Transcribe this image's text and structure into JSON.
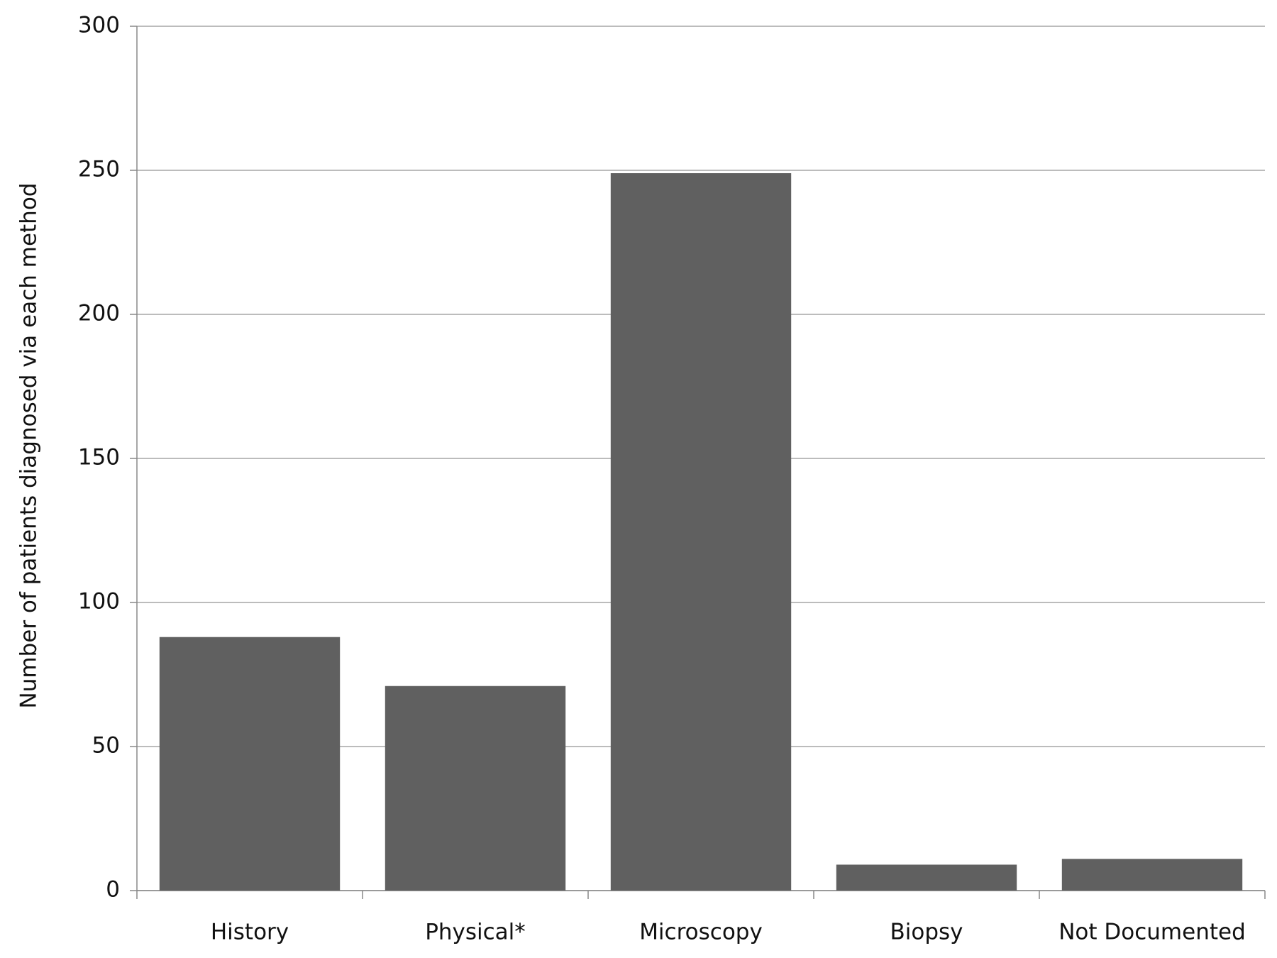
{
  "chart_data": {
    "type": "bar",
    "y_label": "Number of patients diagnosed via each method",
    "categories": [
      "History",
      "Physical*",
      "Microscopy",
      "Biopsy",
      "Not Documented"
    ],
    "values": [
      88,
      71,
      249,
      9,
      11
    ],
    "color": "#606060",
    "ylim": [
      0,
      300
    ],
    "yticks": [
      0,
      50,
      100,
      150,
      200,
      250,
      300
    ],
    "grid": true
  }
}
